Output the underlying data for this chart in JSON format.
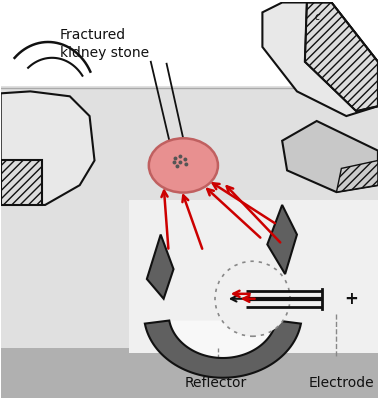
{
  "white_bg": "#ffffff",
  "light_gray": "#e8e8e8",
  "mid_gray": "#c8c8c8",
  "dark_gray": "#888888",
  "darker_gray": "#606060",
  "body_bg": "#e0e0e0",
  "kidney_pink": "#e89090",
  "red": "#cc0000",
  "black": "#111111",
  "label_fractured": "Fractured\nkidney stone",
  "label_reflector": "Reflector",
  "label_electrode": "Electrode",
  "figsize": [
    3.82,
    4.0
  ],
  "dpi": 100
}
